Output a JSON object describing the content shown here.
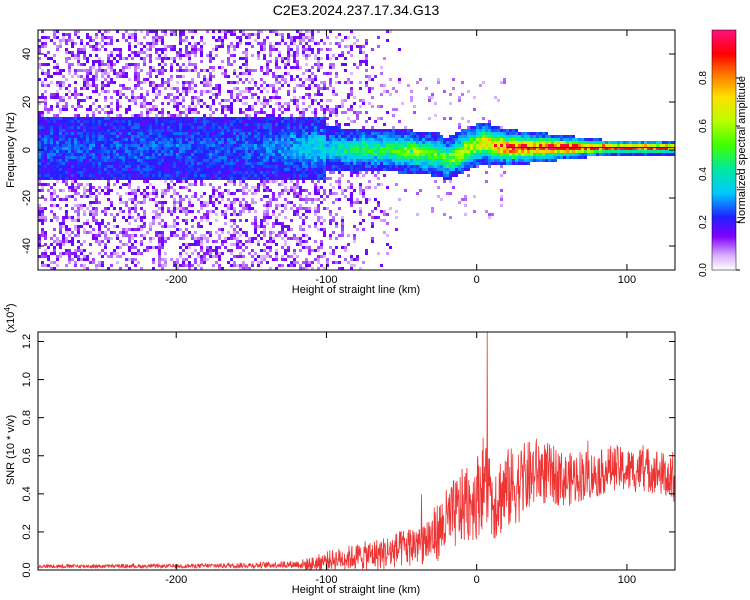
{
  "figure": {
    "title": "C2E3.2024.237.17.34.G13"
  },
  "colors": {
    "snr_line": "#ee3333",
    "axis": "#000000"
  },
  "colorbar": {
    "label": "Normalized spectral amplitude",
    "range": [
      0,
      1
    ],
    "ticks": [
      "0.0",
      "0.2",
      "0.4",
      "0.6",
      "0.8"
    ]
  },
  "chart_data": [
    {
      "type": "heatmap",
      "xlabel": "Height of straight line (km)",
      "ylabel": "Frequency (Hz)",
      "xlim": [
        -292,
        132
      ],
      "ylim": [
        -50,
        50
      ],
      "xticks": [
        "-200",
        "-100",
        "0",
        "100"
      ],
      "yticks": [
        "-40",
        "-20",
        "0",
        "20",
        "40"
      ],
      "colormap": "normalized spectral amplitude (purple-blue-cyan-green-yellow-red-magenta)",
      "ridge": {
        "height_km": [
          -292,
          -150,
          -110,
          -80,
          -60,
          -40,
          -25,
          -20,
          -10,
          0,
          5,
          10,
          20,
          40,
          60,
          80,
          100,
          120,
          132
        ],
        "center_hz": [
          1,
          1,
          1,
          0,
          0,
          -1,
          -2,
          -4,
          -1,
          2,
          3,
          2,
          1,
          1,
          1,
          1,
          1,
          1,
          1
        ],
        "peak_amplitude": [
          0.2,
          0.2,
          0.3,
          0.4,
          0.45,
          0.55,
          0.45,
          0.5,
          0.6,
          0.65,
          0.7,
          0.7,
          0.85,
          0.9,
          0.9,
          0.85,
          0.9,
          0.85,
          0.8
        ]
      }
    },
    {
      "type": "line",
      "xlabel": "Height of straight line (km)",
      "ylabel": "SNR (10 * v/v)",
      "y_multiplier": "(x10",
      "y_multiplier_exp": "4",
      "y_multiplier_close": ")",
      "xlim": [
        -292,
        132
      ],
      "ylim": [
        0,
        1.25
      ],
      "xticks": [
        "-200",
        "-100",
        "0",
        "100"
      ],
      "yticks": [
        "0.0",
        "0.2",
        "0.4",
        "0.6",
        "0.8",
        "1.0",
        "1.2"
      ],
      "series": [
        {
          "x": [
            -292,
            -250,
            -200,
            -150,
            -120,
            -110,
            -100,
            -90,
            -80,
            -70,
            -60,
            -50,
            -40,
            -30,
            -20,
            -10,
            0,
            5,
            10,
            20,
            30,
            40,
            50,
            60,
            70,
            80,
            90,
            100,
            110,
            120,
            132
          ],
          "mean": [
            0.02,
            0.02,
            0.02,
            0.025,
            0.03,
            0.03,
            0.05,
            0.06,
            0.07,
            0.08,
            0.09,
            0.11,
            0.14,
            0.17,
            0.25,
            0.33,
            0.38,
            0.48,
            0.36,
            0.42,
            0.46,
            0.52,
            0.5,
            0.47,
            0.5,
            0.5,
            0.54,
            0.52,
            0.53,
            0.52,
            0.46
          ],
          "spread": [
            0.01,
            0.01,
            0.01,
            0.015,
            0.02,
            0.04,
            0.05,
            0.06,
            0.07,
            0.08,
            0.09,
            0.1,
            0.12,
            0.14,
            0.18,
            0.2,
            0.22,
            0.25,
            0.22,
            0.22,
            0.2,
            0.18,
            0.16,
            0.14,
            0.14,
            0.12,
            0.12,
            0.12,
            0.12,
            0.12,
            0.12
          ],
          "peak": {
            "x": 7,
            "y": 1.25
          }
        }
      ]
    }
  ]
}
